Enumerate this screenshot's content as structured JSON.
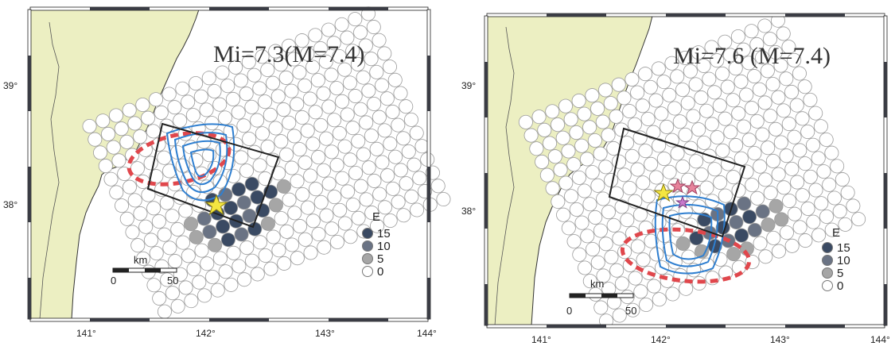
{
  "colors": {
    "land": "#ecefc2",
    "sea": "#ffffff",
    "frame_dark": "#3a3c44",
    "subfault_fill": "#ffffff",
    "subfault_stroke": "#9a9a9a",
    "slip_contour": "#2f7fd0",
    "asperity_outline": "#e0474c",
    "fault_box": "#222222",
    "epicenter_star": "#f4e641",
    "aftershock_star": "#e7839b",
    "legend_15": "#3a4a63",
    "legend_10": "#6a7384",
    "legend_5": "#a6a6a6",
    "legend_0": "#ffffff"
  },
  "maps": [
    {
      "title": "Mi=7.3(M=7.4)",
      "lat_labels": [
        "39°",
        "38°"
      ],
      "lon_labels": [
        "141°",
        "142°",
        "143°",
        "144°"
      ],
      "legend": {
        "header": "E",
        "entries": [
          {
            "label": "15",
            "color": "#3a4a63"
          },
          {
            "label": "10",
            "color": "#6a7384"
          },
          {
            "label": "5",
            "color": "#a6a6a6"
          },
          {
            "label": "0",
            "color": "#ffffff"
          }
        ]
      },
      "scale_bar": {
        "unit": "km",
        "ticks": [
          "0",
          "50"
        ]
      },
      "epicenter_symbol": "yellow-star"
    },
    {
      "title": "Mi=7.6 (M=7.4)",
      "lat_labels": [
        "39°",
        "38°"
      ],
      "lon_labels": [
        "141°",
        "142°",
        "143°",
        "144°"
      ],
      "legend": {
        "header": "E",
        "entries": [
          {
            "label": "15",
            "color": "#3a4a63"
          },
          {
            "label": "10",
            "color": "#6a7384"
          },
          {
            "label": "5",
            "color": "#a6a6a6"
          },
          {
            "label": "0",
            "color": "#ffffff"
          }
        ]
      },
      "scale_bar": {
        "unit": "km",
        "ticks": [
          "0",
          "50"
        ]
      },
      "epicenter_symbol": "yellow-star"
    }
  ]
}
